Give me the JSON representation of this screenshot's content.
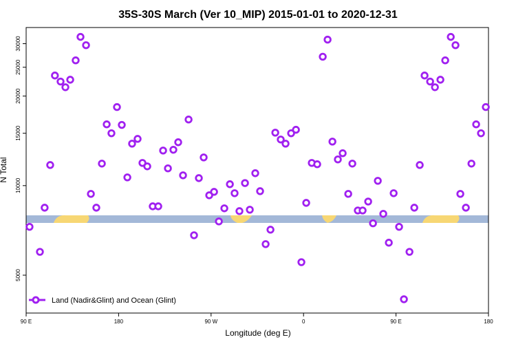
{
  "chart_data": {
    "type": "scatter",
    "title": "35S-30S March (Ver 10_MIP)   2015-01-01 to 2020-12-31",
    "xlabel": "Longitude (deg E)",
    "ylabel": "N Total",
    "log_y": true,
    "legend": "bottom-left",
    "xlim": [
      90,
      540
    ],
    "ylim": [
      3730,
      34000
    ],
    "xticks": [
      {
        "value": 90,
        "label": "90 E"
      },
      180,
      {
        "value": 270,
        "label": "90 W"
      },
      {
        "value": 360,
        "label": "0"
      },
      {
        "value": 450,
        "label": "90 E"
      },
      {
        "value": 540,
        "label": "180"
      }
    ],
    "yticks": [
      5000,
      10000,
      15000,
      20000,
      25000,
      30000
    ],
    "series": [
      {
        "name": "Land (Nadir&Glint) and Ocean (Glint)",
        "color": "#a020f0",
        "x": [
          93.3,
          103.4,
          108,
          113.4,
          118,
          123.5,
          128.2,
          132.9,
          138.2,
          142.9,
          148.3,
          153,
          158.3,
          163.7,
          168.4,
          173,
          178.4,
          183.1,
          188.5,
          193.1,
          198.5,
          203.2,
          207.9,
          213.2,
          218.6,
          223.3,
          228,
          233.3,
          238,
          242.7,
          248.1,
          253.4,
          258.1,
          262.8,
          268.2,
          272.9,
          277.6,
          282.9,
          288.3,
          292.9,
          297.6,
          303,
          307.7,
          313,
          317.7,
          323.1,
          327.8,
          332.5,
          337.8,
          342.5,
          347.9,
          352.6,
          357.9,
          362.6,
          368,
          373.3,
          378.7,
          383.4,
          388.1,
          393.4,
          398.1,
          403.5,
          407.5,
          412.8,
          417.5,
          422.9,
          427.6,
          432.3,
          437.6,
          443,
          447.7,
          453,
          457.7,
          463.1,
          467.8,
          473.1,
          477.8,
          483.2,
          487.9,
          493.2,
          497.9,
          503.3,
          507.9,
          512.6,
          518,
          523.4,
          528,
          532.7,
          537.4
        ],
        "values": [
          7270,
          5990,
          8430,
          11730,
          23450,
          22380,
          21420,
          22700,
          26370,
          31620,
          29650,
          9380,
          8430,
          11860,
          16070,
          15000,
          18370,
          16000,
          10660,
          13840,
          14360,
          11920,
          11610,
          8520,
          8520,
          13120,
          11430,
          13200,
          13990,
          10830,
          16680,
          6810,
          10600,
          12440,
          9280,
          9530,
          7580,
          8390,
          10110,
          9430,
          8210,
          10200,
          8300,
          11010,
          9580,
          6360,
          7110,
          15070,
          14290,
          13840,
          15000,
          15410,
          5530,
          8750,
          11920,
          11800,
          27120,
          30960,
          14060,
          12250,
          12850,
          9380,
          11860,
          8250,
          8250,
          8840,
          7470,
          10380,
          8040,
          6430,
          9430,
          7270,
          4150,
          5990,
          8430,
          11730,
          23450,
          22380,
          21420,
          22700,
          26370,
          31620,
          29650,
          9380,
          8430,
          11860,
          16070,
          15000,
          18370
        ]
      }
    ]
  }
}
